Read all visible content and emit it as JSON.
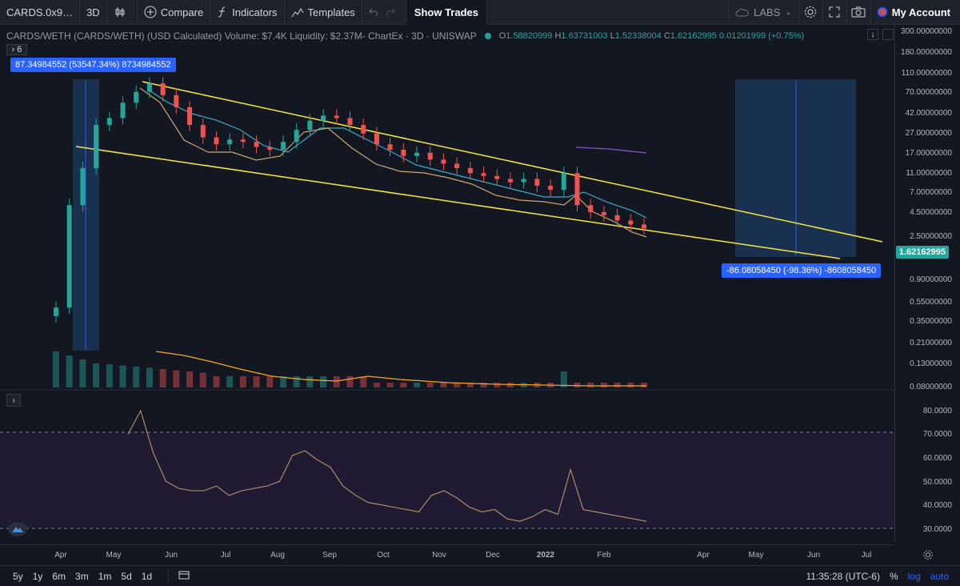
{
  "toolbar": {
    "symbol": "CARDS.0x9…",
    "interval": "3D",
    "compare": "Compare",
    "indicators": "Indicators",
    "templates": "Templates",
    "show_trades": "Show Trades",
    "labs": "LABS",
    "account": "My Account"
  },
  "legend": {
    "title": "CARDS/WETH (CARDS/WETH) (USD Calculated) Volume: $7.4K Liquidity: $2.37M- ChartEx · 3D · UNISWAP",
    "o": "O",
    "o_val": "1.58820999",
    "h": "H",
    "h_val": "1.63731003",
    "l": "L",
    "l_val": "1.52338004",
    "c": "C",
    "c_val": "1.62162995",
    "change": "0.01201999 (+0.75%)",
    "collapsed_count": "6"
  },
  "measures": {
    "up": "87.34984552 (53547.34%) 8734984552",
    "down": "-86.08058450 (-98.36%) -8608058450"
  },
  "current_price": "1.62162995",
  "price_axis": [
    "300.00000000",
    "180.00000000",
    "110.00000000",
    "70.00000000",
    "42.00000000",
    "27.00000000",
    "17.00000000",
    "11.00000000",
    "7.00000000",
    "4.50000000",
    "2.50000000",
    "1.62162995",
    "0.90000000",
    "0.55000000",
    "0.35000000",
    "0.21000000",
    "0.13000000",
    "0.08000000"
  ],
  "rsi_axis": [
    "80.0000",
    "70.0000",
    "60.0000",
    "50.0000",
    "40.0000",
    "30.0000"
  ],
  "time_axis": [
    "Apr",
    "May",
    "Jun",
    "Jul",
    "Aug",
    "Sep",
    "Oct",
    "Nov",
    "Dec",
    "2022",
    "Feb",
    "Apr",
    "May",
    "Jun",
    "Jul"
  ],
  "bottom": {
    "ranges": [
      "5y",
      "1y",
      "6m",
      "3m",
      "1m",
      "5d",
      "1d"
    ],
    "time": "11:35:28 (UTC-6)",
    "percent": "%",
    "log": "log",
    "auto": "auto"
  },
  "colors": {
    "up": "#26a69a",
    "down": "#ef5350",
    "trendline": "#f5e642",
    "ma_fast": "#c8a96e",
    "ma_slow": "#3fa9c5",
    "ma_long": "#7e57c2",
    "volume_ma": "#f5a623",
    "rsi_line": "#b5956a",
    "rsi_band": "#2a1f3d",
    "measure": "#2962ff"
  },
  "chart_data": {
    "type": "candlestick",
    "pair": "CARDS/WETH",
    "interval": "3D",
    "scale": "log",
    "close_series_approx": [
      0.2,
      3,
      8,
      25,
      30,
      45,
      60,
      75,
      55,
      40,
      25,
      18,
      15,
      17,
      16,
      14,
      13,
      16,
      22,
      28,
      32,
      30,
      25,
      20,
      15,
      13,
      11,
      12,
      10,
      9,
      8,
      7,
      6.5,
      6,
      5.5,
      6,
      5,
      4.5,
      7,
      3,
      2.5,
      2.3,
      2.0,
      1.8,
      1.62
    ],
    "rsi_series_approx": [
      70,
      80,
      62,
      50,
      47,
      46,
      46,
      48,
      44,
      46,
      47,
      48,
      50,
      61,
      63,
      59,
      56,
      48,
      44,
      41,
      40,
      39,
      38,
      37,
      44,
      46,
      43,
      39,
      37,
      38,
      34,
      33,
      35,
      38,
      36,
      55,
      38,
      37,
      36,
      35,
      34,
      33
    ],
    "rsi_levels": [
      70,
      30
    ]
  }
}
